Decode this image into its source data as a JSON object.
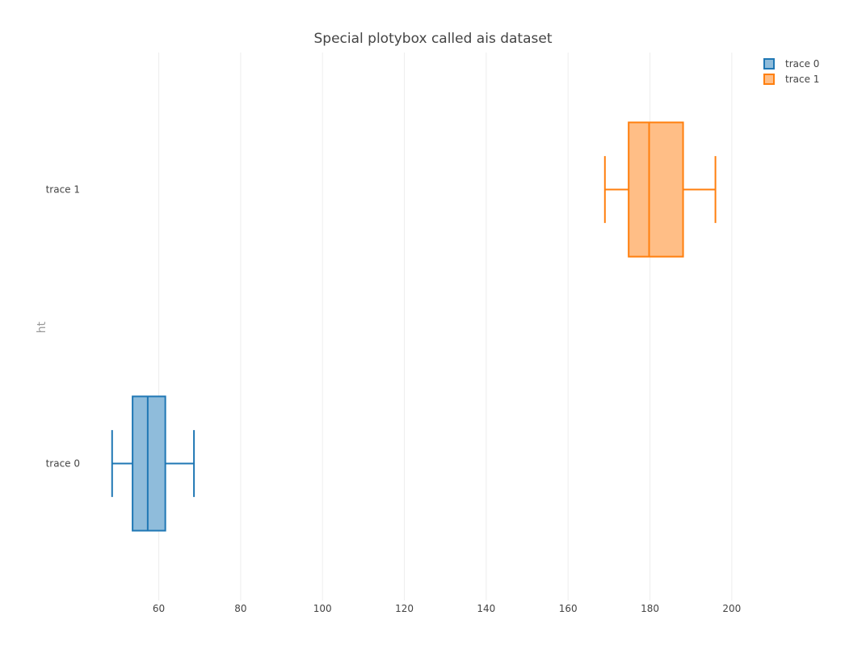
{
  "chart_data": {
    "type": "box",
    "title": "Special plotybox called ais dataset",
    "orientation": "horizontal",
    "ylabel": "ht",
    "xlabel": "",
    "xlim": [
      37,
      217
    ],
    "xticks": [
      60,
      80,
      100,
      120,
      140,
      160,
      180,
      200
    ],
    "grid": true,
    "legend_position": "top-right",
    "series": [
      {
        "name": "trace 0",
        "color": "#1f77b4",
        "fill": "#8fbcdb",
        "whisker_low": 48.6,
        "q1": 53.6,
        "median": 57.3,
        "q3": 61.6,
        "whisker_high": 68.6
      },
      {
        "name": "trace 1",
        "color": "#ff7f0e",
        "fill": "#ffbe86",
        "whisker_low": 169.0,
        "q1": 174.8,
        "median": 179.8,
        "q3": 188.1,
        "whisker_high": 196.0
      }
    ]
  }
}
